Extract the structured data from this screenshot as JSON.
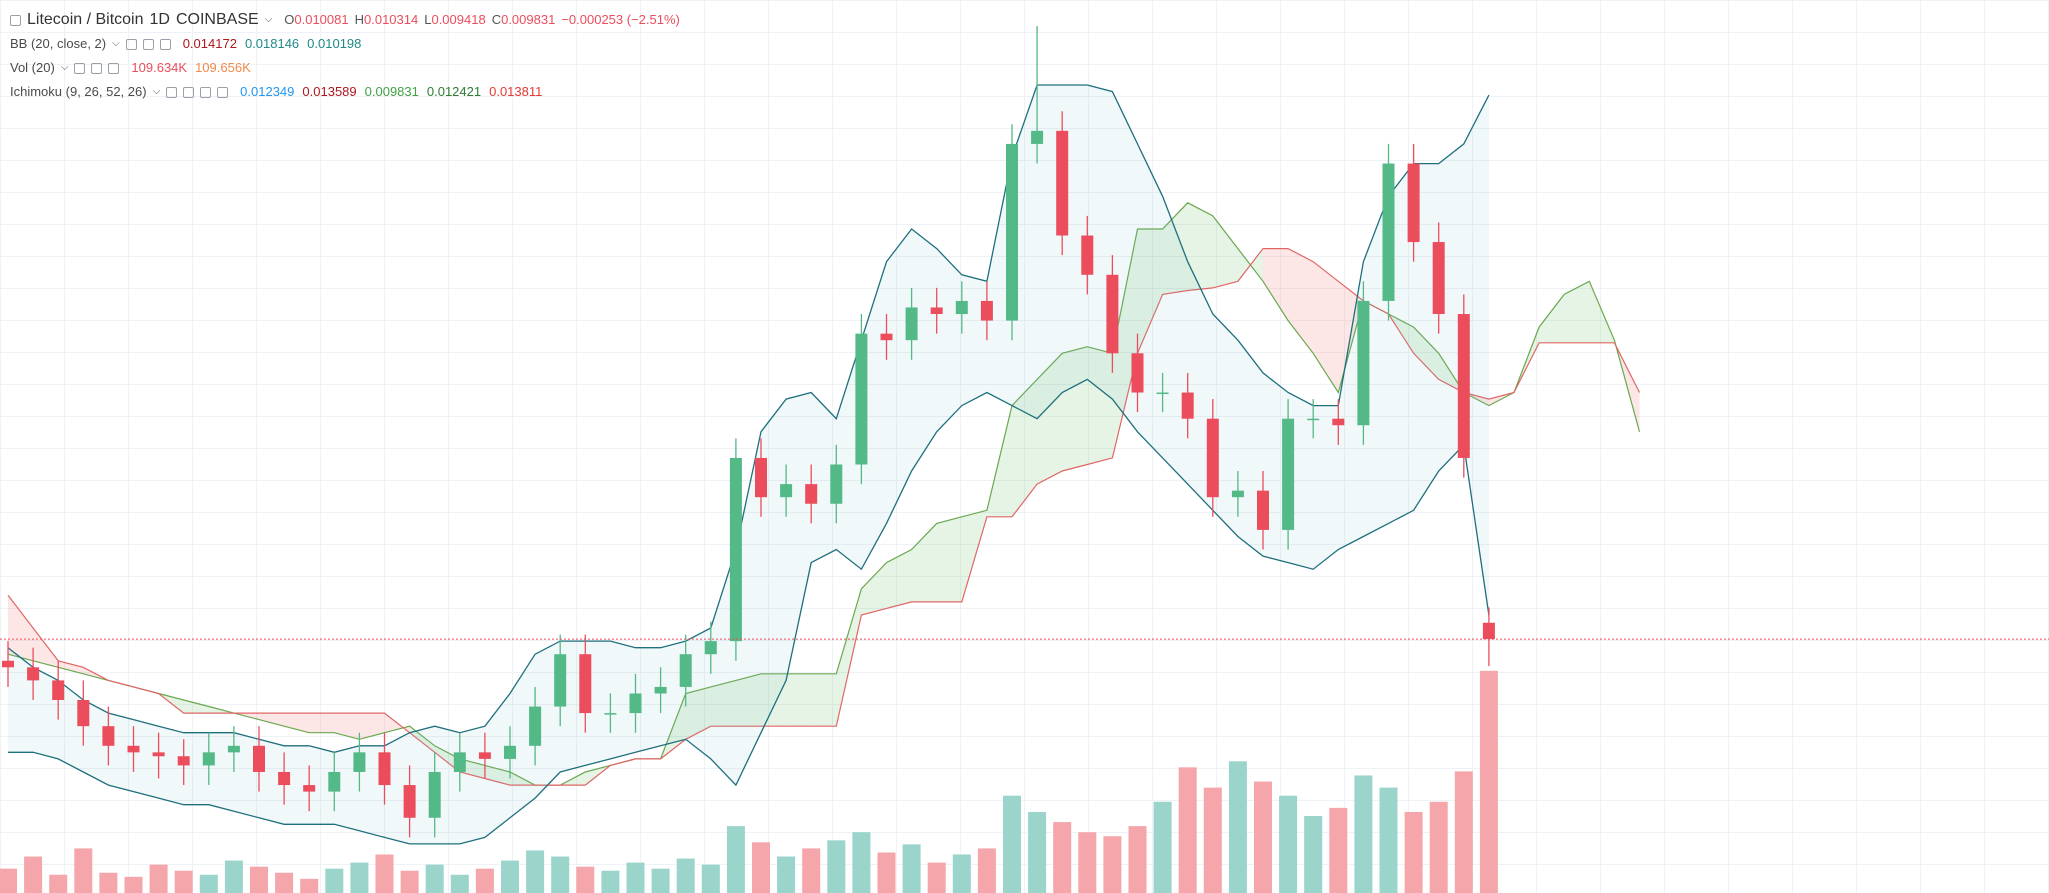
{
  "chart_data": {
    "type": "candlestick",
    "title": "Litecoin / Bitcoin",
    "interval": "1D",
    "exchange": "COINBASE",
    "ohlc_labels": [
      "O",
      "H",
      "L",
      "C"
    ],
    "change": "−0.000253 (−2.51%)",
    "open": [
      0.0095,
      0.0094,
      0.0092,
      0.0089,
      0.0085,
      0.0082,
      0.0081,
      0.00804,
      0.0079,
      0.0081,
      0.0082,
      0.0078,
      0.0076,
      0.0075,
      0.0078,
      0.0081,
      0.0076,
      0.0071,
      0.0078,
      0.0081,
      0.008,
      0.0082,
      0.0088,
      0.0096,
      0.0087,
      0.0087,
      0.009,
      0.0091,
      0.0096,
      0.0098,
      0.0126,
      0.012,
      0.0122,
      0.0119,
      0.0125,
      0.0145,
      0.0144,
      0.0149,
      0.0148,
      0.015,
      0.0147,
      0.0174,
      0.0176,
      0.016,
      0.0154,
      0.0142,
      0.0136,
      0.0136,
      0.0132,
      0.012,
      0.0121,
      0.0115,
      0.0132,
      0.0132,
      0.0131,
      0.015,
      0.0171,
      0.0159,
      0.0148,
      0.010081
    ],
    "high": [
      0.0098,
      0.0097,
      0.0095,
      0.0092,
      0.0088,
      0.0085,
      0.0084,
      0.0083,
      0.0084,
      0.0085,
      0.0085,
      0.0081,
      0.0079,
      0.0081,
      0.0084,
      0.0084,
      0.0079,
      0.0081,
      0.0084,
      0.0084,
      0.0085,
      0.0091,
      0.0099,
      0.0099,
      0.009,
      0.0093,
      0.0094,
      0.0099,
      0.0101,
      0.0129,
      0.0129,
      0.0125,
      0.0125,
      0.0128,
      0.0148,
      0.0148,
      0.0152,
      0.0152,
      0.0153,
      0.0153,
      0.0177,
      0.0192,
      0.0179,
      0.0163,
      0.0157,
      0.0145,
      0.0139,
      0.0139,
      0.0135,
      0.0124,
      0.0124,
      0.0135,
      0.0135,
      0.0135,
      0.0153,
      0.0174,
      0.0174,
      0.0162,
      0.0151,
      0.010314
    ],
    "low": [
      0.0091,
      0.0089,
      0.0086,
      0.0082,
      0.0079,
      0.0078,
      0.0077,
      0.0076,
      0.0076,
      0.0078,
      0.0075,
      0.0073,
      0.0072,
      0.0072,
      0.0075,
      0.0073,
      0.0068,
      0.0068,
      0.0075,
      0.0077,
      0.0077,
      0.0079,
      0.0085,
      0.0084,
      0.0084,
      0.0084,
      0.0087,
      0.0088,
      0.0093,
      0.0095,
      0.0117,
      0.0117,
      0.0116,
      0.0116,
      0.0122,
      0.0141,
      0.0141,
      0.0145,
      0.0145,
      0.0144,
      0.0144,
      0.0171,
      0.0157,
      0.0151,
      0.0139,
      0.0133,
      0.0133,
      0.0129,
      0.0117,
      0.0117,
      0.0112,
      0.0112,
      0.0129,
      0.0128,
      0.0128,
      0.0147,
      0.0156,
      0.0145,
      0.0123,
      0.009418
    ],
    "close": [
      0.0094,
      0.0092,
      0.0089,
      0.0085,
      0.0082,
      0.0081,
      0.00804,
      0.0079,
      0.0081,
      0.0082,
      0.0078,
      0.0076,
      0.0075,
      0.0078,
      0.0081,
      0.0076,
      0.0071,
      0.0078,
      0.0081,
      0.008,
      0.0082,
      0.0088,
      0.0096,
      0.0087,
      0.0087,
      0.009,
      0.0091,
      0.0096,
      0.0098,
      0.0126,
      0.012,
      0.0122,
      0.0119,
      0.0125,
      0.0145,
      0.0144,
      0.0149,
      0.0148,
      0.015,
      0.0147,
      0.0174,
      0.0176,
      0.016,
      0.0154,
      0.0142,
      0.0136,
      0.0136,
      0.0132,
      0.012,
      0.0121,
      0.0115,
      0.0132,
      0.0132,
      0.0131,
      0.015,
      0.0171,
      0.0159,
      0.0148,
      0.0126,
      0.009831
    ],
    "volume": [
      12000,
      18000,
      9000,
      22000,
      10000,
      8000,
      14000,
      11000,
      9000,
      16000,
      13000,
      10000,
      7000,
      12000,
      15000,
      19000,
      11000,
      14000,
      9000,
      12000,
      16000,
      21000,
      18000,
      13000,
      11000,
      15000,
      12000,
      17000,
      14000,
      33000,
      25000,
      18000,
      22000,
      26000,
      30000,
      20000,
      24000,
      15000,
      19000,
      22000,
      48000,
      40000,
      35000,
      30000,
      28000,
      33000,
      45000,
      62000,
      52000,
      65000,
      55000,
      48000,
      38000,
      42000,
      58000,
      52000,
      40000,
      45000,
      60000,
      109634
    ],
    "ylim": [
      0.00595,
      0.0196
    ],
    "volume_ylim": [
      0,
      300000
    ],
    "colors": {
      "up": "#53b987",
      "down": "#eb4d5c",
      "volume_up": "#9bd4cb",
      "volume_down": "#f5a6ab",
      "last_price": "#eb4d5c"
    },
    "bands": {
      "upper": [
        0.0097,
        0.0094,
        0.0092,
        0.0089,
        0.0087,
        0.0086,
        0.0085,
        0.0084,
        0.0084,
        0.0084,
        0.0083,
        0.0082,
        0.0082,
        0.0081,
        0.0082,
        0.0082,
        0.0084,
        0.0085,
        0.0084,
        0.0085,
        0.009,
        0.0096,
        0.0098,
        0.0098,
        0.0098,
        0.0097,
        0.0097,
        0.0098,
        0.01,
        0.0112,
        0.013,
        0.0135,
        0.0136,
        0.0132,
        0.0144,
        0.0156,
        0.0161,
        0.0158,
        0.0154,
        0.0153,
        0.0172,
        0.0183,
        0.0183,
        0.0183,
        0.0182,
        0.0174,
        0.0166,
        0.0156,
        0.0148,
        0.0144,
        0.0139,
        0.0136,
        0.0134,
        0.0134,
        0.0156,
        0.0166,
        0.0171,
        0.0171,
        0.0174,
        0.018146
      ],
      "lower": [
        0.0081,
        0.0081,
        0.008,
        0.0078,
        0.0076,
        0.0075,
        0.0074,
        0.0073,
        0.0073,
        0.0072,
        0.0071,
        0.007,
        0.007,
        0.007,
        0.0069,
        0.0068,
        0.0067,
        0.0067,
        0.0067,
        0.0068,
        0.0071,
        0.0074,
        0.0078,
        0.0079,
        0.008,
        0.0081,
        0.0082,
        0.0083,
        0.008,
        0.0076,
        0.0084,
        0.0092,
        0.011,
        0.0112,
        0.0109,
        0.0116,
        0.0124,
        0.013,
        0.0134,
        0.0136,
        0.0134,
        0.0132,
        0.0136,
        0.0138,
        0.0135,
        0.013,
        0.0126,
        0.0122,
        0.0118,
        0.0114,
        0.0111,
        0.011,
        0.0109,
        0.0112,
        0.0114,
        0.0116,
        0.0118,
        0.0124,
        0.0128,
        0.010198
      ],
      "color": "#1f6f7d",
      "fill": "rgba(120,190,200,0.10)"
    },
    "ichimoku": {
      "span_a": [
        0.0096,
        0.0095,
        0.0094,
        0.0093,
        0.0092,
        0.0091,
        0.009,
        0.0089,
        0.0088,
        0.0087,
        0.0086,
        0.0085,
        0.0084,
        0.0084,
        0.0083,
        0.0084,
        0.0085,
        0.0082,
        0.008,
        0.0079,
        0.0078,
        0.0076,
        0.0076,
        0.0078,
        0.0079,
        0.008,
        0.008,
        0.009,
        0.0091,
        0.0092,
        0.0093,
        0.0093,
        0.0093,
        0.0093,
        0.0106,
        0.011,
        0.0112,
        0.0116,
        0.0117,
        0.0118,
        0.0134,
        0.0138,
        0.0142,
        0.0143,
        0.0142,
        0.0161,
        0.0161,
        0.0165,
        0.0163,
        0.0158,
        0.0153,
        0.0147,
        0.0142,
        0.0136,
        0.015,
        0.0148,
        0.0146,
        0.0142,
        0.0136,
        0.0134,
        0.0136,
        0.0146,
        0.0151,
        0.0153,
        0.0144,
        0.013
      ],
      "span_b": [
        0.0105,
        0.01,
        0.0095,
        0.0094,
        0.0092,
        0.0091,
        0.009,
        0.0087,
        0.0087,
        0.0087,
        0.0087,
        0.0087,
        0.0087,
        0.0087,
        0.0087,
        0.0087,
        0.0084,
        0.0081,
        0.0078,
        0.0077,
        0.0076,
        0.0076,
        0.0076,
        0.0076,
        0.0079,
        0.008,
        0.008,
        0.0083,
        0.0085,
        0.0085,
        0.0085,
        0.0085,
        0.0085,
        0.0085,
        0.0102,
        0.0103,
        0.0104,
        0.0104,
        0.0104,
        0.0117,
        0.0117,
        0.0122,
        0.0124,
        0.0125,
        0.0126,
        0.0142,
        0.0151,
        0.01516,
        0.0152,
        0.0153,
        0.0158,
        0.0158,
        0.0156,
        0.0153,
        0.015,
        0.0148,
        0.0142,
        0.0138,
        0.0136,
        0.0135,
        0.0136,
        0.01436,
        0.01436,
        0.01436,
        0.01436,
        0.0136
      ],
      "color_a": "#6aa84f",
      "color_b": "#e06666",
      "fill_up": "rgba(76,175,80,0.14)",
      "fill_down": "rgba(239,83,80,0.14)"
    },
    "legend": {
      "bb": {
        "label": "BB (20, close, 2)",
        "values": [
          0.014172,
          0.018146,
          0.010198
        ],
        "colors": [
          "#b0171f",
          "#1f8a8a",
          "#1f8a8a"
        ]
      },
      "vol": {
        "label": "Vol (20)",
        "values": [
          "109.634K",
          "109.656K"
        ],
        "colors": [
          "#eb4d5c",
          "#f28a4b"
        ]
      },
      "ichimoku": {
        "label": "Ichimoku (9, 26, 52, 26)",
        "values": [
          0.012349,
          0.013589,
          0.009831,
          0.012421,
          0.013811
        ],
        "colors": [
          "#2196f3",
          "#b0171f",
          "#43a047",
          "#2e7d32",
          "#e53935"
        ]
      }
    },
    "grid": true
  }
}
